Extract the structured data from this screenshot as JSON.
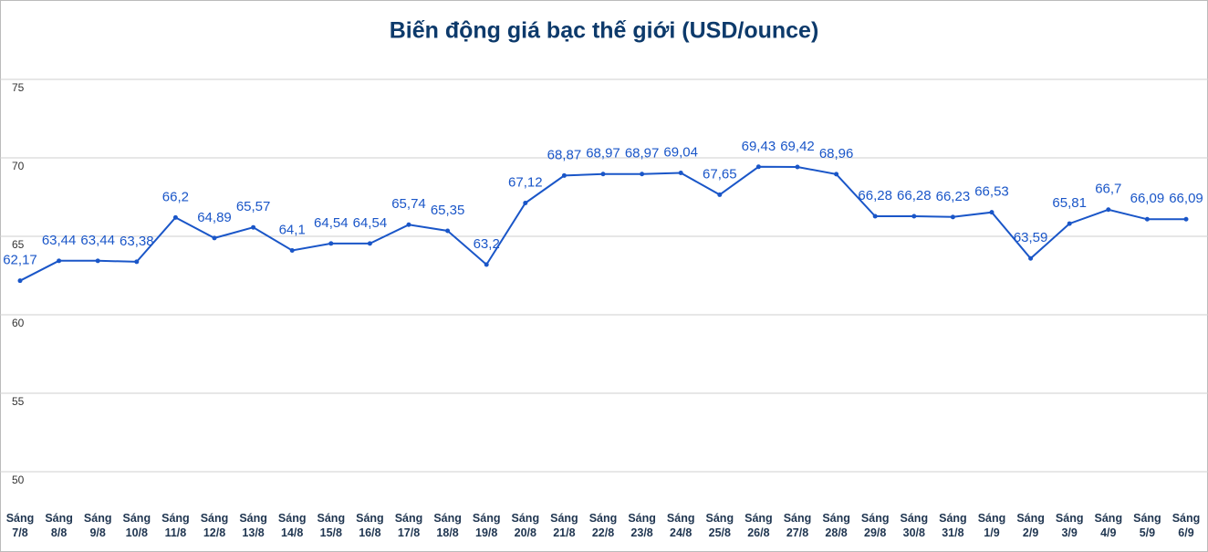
{
  "chart_data": {
    "type": "line",
    "title": "Biến động giá bạc thế giới (USD/ounce)",
    "categories": [
      "Sáng 7/8",
      "Sáng 8/8",
      "Sáng 9/8",
      "Sáng 10/8",
      "Sáng 11/8",
      "Sáng 12/8",
      "Sáng 13/8",
      "Sáng 14/8",
      "Sáng 15/8",
      "Sáng 16/8",
      "Sáng 17/8",
      "Sáng 18/8",
      "Sáng 19/8",
      "Sáng 20/8",
      "Sáng 21/8",
      "Sáng 22/8",
      "Sáng 23/8",
      "Sáng 24/8",
      "Sáng 25/8",
      "Sáng 26/8",
      "Sáng 27/8",
      "Sáng 28/8",
      "Sáng 29/8",
      "Sáng 30/8",
      "Sáng 31/8",
      "Sáng 1/9",
      "Sáng 2/9",
      "Sáng 3/9",
      "Sáng 4/9",
      "Sáng 5/9",
      "Sáng 6/9"
    ],
    "values": [
      62.17,
      63.44,
      63.44,
      63.38,
      66.2,
      64.89,
      65.57,
      64.1,
      64.54,
      64.54,
      65.74,
      65.35,
      63.2,
      67.12,
      68.87,
      68.97,
      68.97,
      69.04,
      67.65,
      69.43,
      69.42,
      68.96,
      66.28,
      66.28,
      66.23,
      66.53,
      63.59,
      65.81,
      66.7,
      66.09,
      66.09
    ],
    "value_labels": [
      "62,17",
      "63,44",
      "63,44",
      "63,38",
      "66,2",
      "64,89",
      "65,57",
      "64,1",
      "64,54",
      "64,54",
      "65,74",
      "65,35",
      "63,2",
      "67,12",
      "68,87",
      "68,97",
      "68,97",
      "69,04",
      "67,65",
      "69,43",
      "69,42",
      "68,96",
      "66,28",
      "66,28",
      "66,23",
      "66,53",
      "63,59",
      "65,81",
      "66,7",
      "66,09",
      "66,09"
    ],
    "color": "#1a56c8",
    "ylim": [
      50,
      75
    ],
    "yticks": [
      50,
      55,
      60,
      65,
      70,
      75
    ],
    "grid": true
  }
}
